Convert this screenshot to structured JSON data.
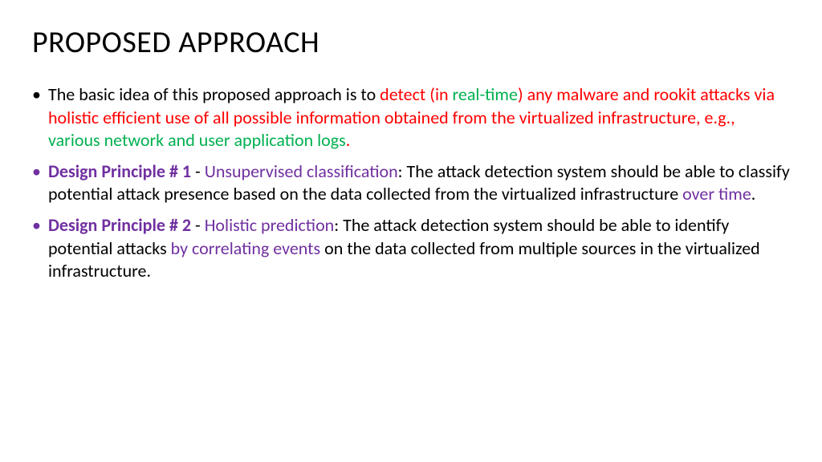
{
  "colors": {
    "black": "#000000",
    "red": "#ff0000",
    "green": "#00b050",
    "purple": "#7030a0",
    "background": "#ffffff"
  },
  "typography": {
    "title_fontsize": 38,
    "body_fontsize": 22,
    "font_family": "Calibri"
  },
  "title": "PROPOSED APPROACH",
  "bullets": [
    {
      "bullet_color": "black",
      "spans": [
        {
          "text": "The basic idea of this proposed approach is to ",
          "color": "black"
        },
        {
          "text": "detect (in ",
          "color": "red"
        },
        {
          "text": "real-time",
          "color": "green"
        },
        {
          "text": ") any malware and rookit attacks via holistic efficient use of all possible information obtained from the virtualized infrastructure, e.g., ",
          "color": "red"
        },
        {
          "text": "various network and user application logs",
          "color": "green"
        },
        {
          "text": ".",
          "color": "red"
        }
      ]
    },
    {
      "bullet_color": "purple",
      "spans": [
        {
          "text": "Design Principle # 1",
          "color": "purple",
          "bold": true
        },
        {
          "text": " - ",
          "color": "black"
        },
        {
          "text": "Unsupervised classification",
          "color": "purple"
        },
        {
          "text": ": The attack detection system should be able to classify potential attack presence based on the data collected from the virtualized infrastructure ",
          "color": "black"
        },
        {
          "text": "over time",
          "color": "purple"
        },
        {
          "text": ".",
          "color": "black"
        }
      ]
    },
    {
      "bullet_color": "purple",
      "spans": [
        {
          "text": "Design Principle # 2",
          "color": "purple",
          "bold": true
        },
        {
          "text": " - ",
          "color": "black"
        },
        {
          "text": "Holistic prediction",
          "color": "purple"
        },
        {
          "text": ": The attack detection system should be able to identify potential attacks ",
          "color": "black"
        },
        {
          "text": "by correlating events",
          "color": "purple"
        },
        {
          "text": " on the data collected from multiple sources in the virtualized infrastructure.",
          "color": "black"
        }
      ]
    }
  ]
}
